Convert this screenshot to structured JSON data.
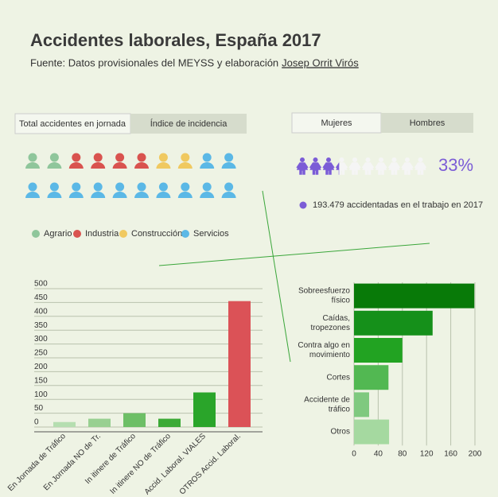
{
  "header": {
    "title": "Accidentes laborales, España 2017",
    "subtitle": "Fuente: Datos provisionales del MEYSS y elaboración",
    "author": "Josep Orrit Virós"
  },
  "tabs": {
    "left": [
      "Total accidentes en jornada",
      "Índice de incidencia"
    ],
    "right": [
      "Mujeres",
      "Hombres"
    ]
  },
  "chart_data": [
    {
      "type": "pictogram",
      "categories": [
        "Agrario",
        "Industria",
        "Construcción",
        "Servicios"
      ],
      "values": [
        2,
        4,
        2,
        12
      ],
      "colors": [
        "#8fc69b",
        "#d9534f",
        "#f0c960",
        "#5bb8e6"
      ],
      "per_row": 10
    },
    {
      "type": "gauge",
      "values": [
        33
      ],
      "value_labels": [
        "33%"
      ],
      "icons": 10,
      "color": "#7b5cd6",
      "note": "193.479 accidentadas en el trabajo en 2017"
    },
    {
      "type": "bar",
      "categories": [
        "En Jornada de Tráfico",
        "En Jornada NO de Tr.",
        "In itinere de Tráfico",
        "In itinere NO de Tráfico",
        "Accid. Laboral. VIALES",
        "OTROS Accid. Laboral."
      ],
      "values": [
        18,
        30,
        50,
        30,
        125,
        455
      ],
      "colors": [
        "#b5deb0",
        "#98d091",
        "#6dbf66",
        "#3caa36",
        "#2aa52a",
        "#db5257"
      ],
      "ylim": [
        0,
        500
      ],
      "yticks": [
        0,
        50,
        100,
        150,
        200,
        250,
        300,
        350,
        400,
        450,
        500
      ],
      "grid": true
    },
    {
      "type": "hbar",
      "categories": [
        [
          "Sobreesfuerzo",
          "físico"
        ],
        [
          "Caídas,",
          "tropezones"
        ],
        [
          "Contra algo en",
          "movimiento"
        ],
        [
          "Cortes"
        ],
        [
          "Accidente de",
          "tráfico"
        ],
        [
          "Otros"
        ]
      ],
      "values": [
        199,
        130,
        80,
        57,
        25,
        58
      ],
      "colors": [
        "#087a08",
        "#15901a",
        "#22a322",
        "#52b852",
        "#7fc97f",
        "#a5d9a0"
      ],
      "xlim": [
        0,
        200
      ],
      "xticks": [
        0,
        40,
        80,
        120,
        160,
        200
      ],
      "grid": true
    }
  ]
}
